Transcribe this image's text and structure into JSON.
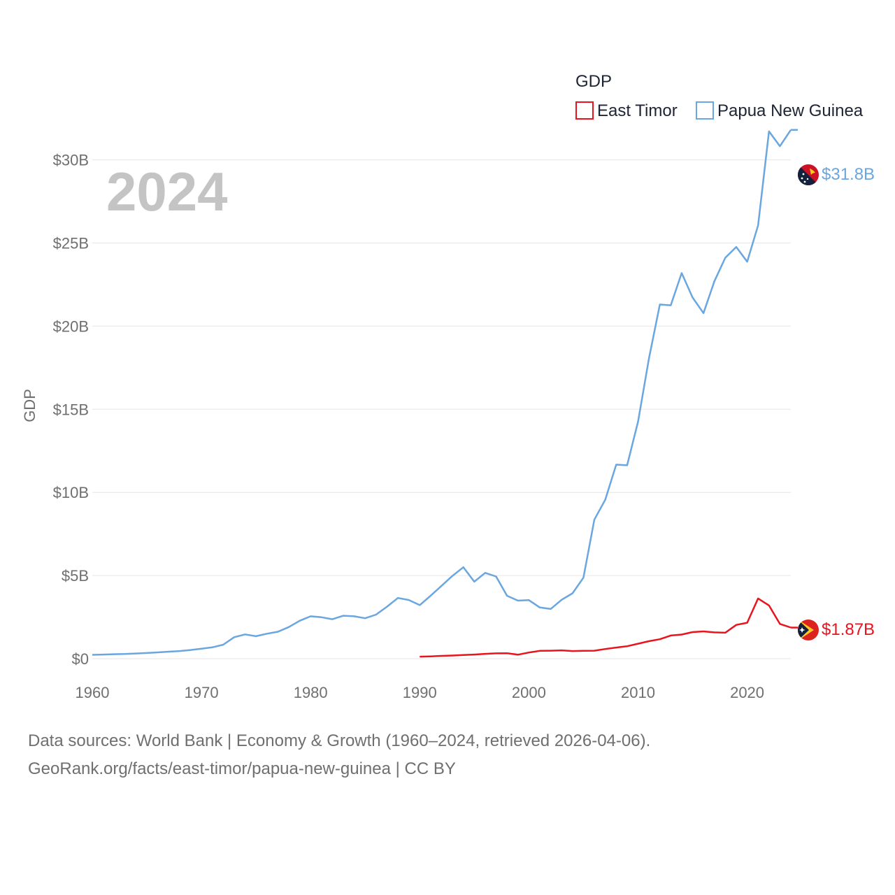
{
  "chart_data": {
    "type": "line",
    "title": "",
    "ylabel": "GDP",
    "xlabel": "",
    "year_label": "2024",
    "xlim": [
      1960,
      2024
    ],
    "ylim": [
      0,
      32
    ],
    "x_ticks": [
      1960,
      1970,
      1980,
      1990,
      2000,
      2010,
      2020
    ],
    "x_tick_labels": [
      "1960",
      "1970",
      "1980",
      "1990",
      "2000",
      "2010",
      "2020"
    ],
    "y_ticks": [
      0,
      5,
      10,
      15,
      20,
      25,
      30
    ],
    "y_tick_labels": [
      "$0",
      "$5B",
      "$10B",
      "$15B",
      "$20B",
      "$25B",
      "$30B"
    ],
    "legend": {
      "title": "GDP",
      "position": "top-right",
      "entries": [
        "East Timor",
        "Papua New Guinea"
      ]
    },
    "series": [
      {
        "name": "East Timor",
        "color": "#e8141e",
        "end_label": "$1.87B",
        "x": [
          1990,
          1991,
          1992,
          1993,
          1994,
          1995,
          1996,
          1997,
          1998,
          1999,
          2000,
          2001,
          2002,
          2003,
          2004,
          2005,
          2006,
          2007,
          2008,
          2009,
          2010,
          2011,
          2012,
          2013,
          2014,
          2015,
          2016,
          2017,
          2018,
          2019,
          2020,
          2021,
          2022,
          2023,
          2024
        ],
        "values": [
          0.12,
          0.14,
          0.17,
          0.19,
          0.22,
          0.25,
          0.29,
          0.32,
          0.33,
          0.24,
          0.37,
          0.47,
          0.48,
          0.5,
          0.46,
          0.47,
          0.48,
          0.58,
          0.67,
          0.75,
          0.9,
          1.05,
          1.17,
          1.39,
          1.45,
          1.6,
          1.64,
          1.58,
          1.56,
          2.03,
          2.16,
          3.62,
          3.2,
          2.09,
          1.87
        ]
      },
      {
        "name": "Papua New Guinea",
        "color": "#6aa6e0",
        "end_label": "$31.8B",
        "x": [
          1960,
          1961,
          1962,
          1963,
          1964,
          1965,
          1966,
          1967,
          1968,
          1969,
          1970,
          1971,
          1972,
          1973,
          1974,
          1975,
          1976,
          1977,
          1978,
          1979,
          1980,
          1981,
          1982,
          1983,
          1984,
          1985,
          1986,
          1987,
          1988,
          1989,
          1990,
          1991,
          1992,
          1993,
          1994,
          1995,
          1996,
          1997,
          1998,
          1999,
          2000,
          2001,
          2002,
          2003,
          2004,
          2005,
          2006,
          2007,
          2008,
          2009,
          2010,
          2011,
          2012,
          2013,
          2014,
          2015,
          2016,
          2017,
          2018,
          2019,
          2020,
          2021,
          2022,
          2023,
          2024
        ],
        "values": [
          0.23,
          0.25,
          0.27,
          0.28,
          0.31,
          0.34,
          0.38,
          0.42,
          0.46,
          0.52,
          0.6,
          0.68,
          0.84,
          1.29,
          1.46,
          1.35,
          1.5,
          1.62,
          1.9,
          2.28,
          2.55,
          2.49,
          2.37,
          2.58,
          2.55,
          2.43,
          2.65,
          3.13,
          3.65,
          3.53,
          3.22,
          3.79,
          4.38,
          4.98,
          5.5,
          4.63,
          5.16,
          4.94,
          3.78,
          3.49,
          3.52,
          3.08,
          2.99,
          3.54,
          3.93,
          4.87,
          8.36,
          9.56,
          11.67,
          11.63,
          14.25,
          18.05,
          21.3,
          21.25,
          23.19,
          21.72,
          20.78,
          22.7,
          24.11,
          24.76,
          23.87,
          26.06,
          31.71,
          30.82,
          31.8
        ]
      }
    ]
  },
  "source": {
    "line1": "Data sources: World Bank | Economy & Growth (1960–2024, retrieved 2026-04-06).",
    "line2": "GeoRank.org/facts/east-timor/papua-new-guinea | CC BY"
  }
}
